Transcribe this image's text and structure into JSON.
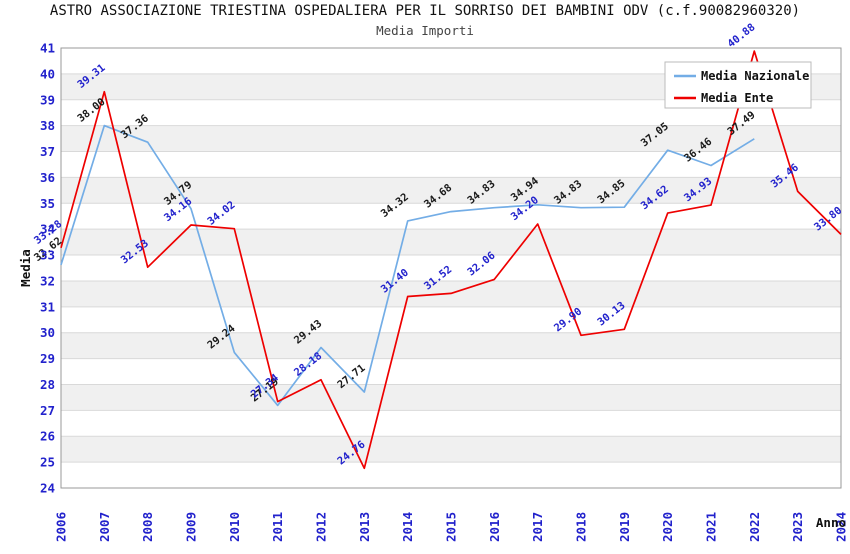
{
  "title": "ASTRO ASSOCIAZIONE TRIESTINA OSPEDALIERA PER IL SORRISO DEI BAMBINI ODV (c.f.90082960320)",
  "subtitle": "Media Importi",
  "chart_data": {
    "type": "line",
    "x_years": [
      "2006",
      "2007",
      "2008",
      "2009",
      "2010",
      "2011",
      "2012",
      "2013",
      "2014",
      "2015",
      "2016",
      "2017",
      "2018",
      "2019",
      "2020",
      "2021",
      "2022",
      "2023",
      "2024"
    ],
    "series": [
      {
        "name": "Media Nazionale",
        "color": "#73ade6",
        "label_color": "#1a1a1a",
        "values": [
          32.62,
          38.0,
          37.36,
          34.79,
          29.24,
          27.19,
          29.43,
          27.71,
          34.32,
          34.68,
          34.83,
          34.94,
          34.83,
          34.85,
          37.05,
          36.46,
          37.49,
          null,
          null
        ]
      },
      {
        "name": "Media Ente",
        "color": "#ee0000",
        "label_color": "#2222cc",
        "values": [
          33.28,
          39.31,
          32.53,
          34.16,
          34.02,
          27.34,
          28.18,
          24.76,
          31.4,
          31.52,
          32.06,
          34.2,
          29.9,
          30.13,
          34.62,
          34.93,
          40.88,
          35.46,
          33.8
        ]
      }
    ],
    "xlabel": "Anno",
    "ylabel": "Media",
    "ylim": [
      24,
      41
    ],
    "ytick_step": 1,
    "grid": true,
    "legend_position": "top-right",
    "styles": {
      "tick_color": "#2222cc",
      "band_color": "#f0f0f0",
      "grid_color": "#d9d9d9",
      "border_color": "#999999",
      "legend_border": "#bbbbbb",
      "background": "#ffffff"
    }
  }
}
